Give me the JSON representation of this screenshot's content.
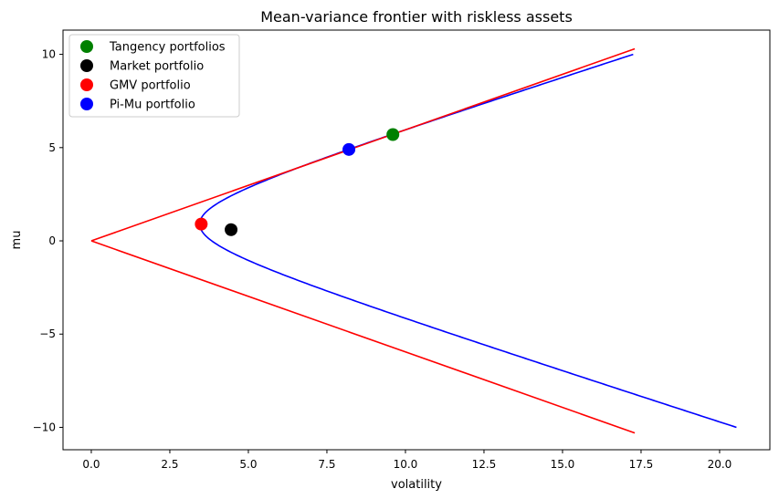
{
  "chart_data": {
    "type": "line",
    "title": "Mean-variance frontier with riskless assets",
    "xlabel": "volatility",
    "ylabel": "mu",
    "xlim": [
      -0.9,
      21.6
    ],
    "ylim": [
      -11.2,
      11.3
    ],
    "xticks": [
      0.0,
      2.5,
      5.0,
      7.5,
      10.0,
      12.5,
      15.0,
      17.5,
      20.0
    ],
    "xtick_labels": [
      "0.0",
      "2.5",
      "5.0",
      "7.5",
      "10.0",
      "12.5",
      "15.0",
      "17.5",
      "20.0"
    ],
    "yticks": [
      -10,
      -5,
      0,
      5,
      10
    ],
    "ytick_labels": [
      "−10",
      "−5",
      "0",
      "5",
      "10"
    ],
    "grid": false,
    "legend_position": "top-left",
    "frontier": {
      "color": "#0000ff",
      "min_volatility": 3.45,
      "mu_at_min_volatility": 0.9,
      "volatility_at_mu_10": 17.25,
      "mu_range": [
        -10,
        10
      ]
    },
    "riskless_lines": {
      "color": "#ff0000",
      "upper": {
        "x": [
          0.0,
          17.3
        ],
        "y": [
          0.0,
          10.3
        ]
      },
      "lower": {
        "x": [
          0.0,
          17.3
        ],
        "y": [
          0.0,
          -10.3
        ]
      }
    },
    "points": [
      {
        "name": "Tangency portfolios",
        "x": 9.6,
        "y": 5.7,
        "color": "#008000"
      },
      {
        "name": "Market portfolio",
        "x": 4.45,
        "y": 0.6,
        "color": "#000000"
      },
      {
        "name": "GMV portfolio",
        "x": 3.5,
        "y": 0.9,
        "color": "#ff0000"
      },
      {
        "name": "Pi-Mu portfolio",
        "x": 8.2,
        "y": 4.9,
        "color": "#0000ff"
      }
    ]
  }
}
